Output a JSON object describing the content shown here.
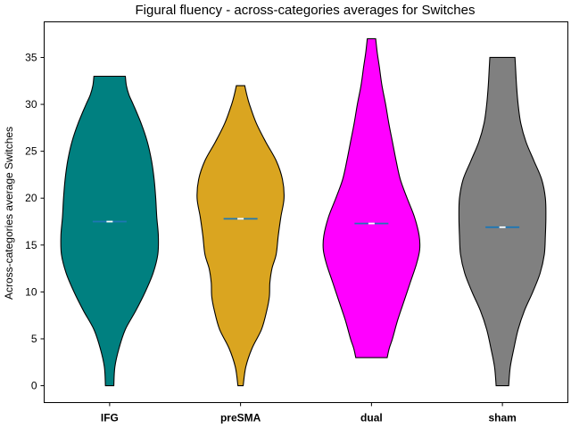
{
  "chart_data": {
    "type": "violin",
    "title": "Figural fluency - across-categories averages for Switches",
    "xlabel": "",
    "ylabel": "Across-categories average Switches",
    "ylim": [
      -1.8,
      38.8
    ],
    "yticks": [
      0,
      5,
      10,
      15,
      20,
      25,
      30,
      35
    ],
    "grid": false,
    "legend": "none",
    "categories": [
      "IFG",
      "preSMA",
      "dual",
      "sham"
    ],
    "colors": [
      "#008080",
      "#DAA520",
      "#FF00FF",
      "#808080"
    ],
    "median_color": "#1f77b4",
    "mean_marker_color": "#ffffff",
    "violins": [
      {
        "name": "IFG",
        "min": 0,
        "max": 33,
        "mean": 17.5,
        "median": 17.5,
        "profile": [
          [
            0,
            0.08
          ],
          [
            2,
            0.1
          ],
          [
            4,
            0.18
          ],
          [
            6,
            0.3
          ],
          [
            8,
            0.5
          ],
          [
            10,
            0.68
          ],
          [
            12,
            0.83
          ],
          [
            14,
            0.92
          ],
          [
            16,
            0.93
          ],
          [
            18,
            0.9
          ],
          [
            20,
            0.88
          ],
          [
            22,
            0.85
          ],
          [
            24,
            0.8
          ],
          [
            26,
            0.72
          ],
          [
            28,
            0.6
          ],
          [
            30,
            0.45
          ],
          [
            31,
            0.37
          ],
          [
            32,
            0.32
          ],
          [
            33,
            0.3
          ]
        ]
      },
      {
        "name": "preSMA",
        "min": 0,
        "max": 32,
        "mean": 17.8,
        "median": 17.8,
        "profile": [
          [
            0,
            0.05
          ],
          [
            2,
            0.1
          ],
          [
            4,
            0.22
          ],
          [
            6,
            0.4
          ],
          [
            8,
            0.5
          ],
          [
            9.5,
            0.55
          ],
          [
            11,
            0.56
          ],
          [
            12.5,
            0.6
          ],
          [
            14,
            0.68
          ],
          [
            16,
            0.72
          ],
          [
            18,
            0.77
          ],
          [
            20,
            0.83
          ],
          [
            22,
            0.8
          ],
          [
            24,
            0.68
          ],
          [
            26,
            0.48
          ],
          [
            28,
            0.3
          ],
          [
            30,
            0.17
          ],
          [
            31,
            0.12
          ],
          [
            32,
            0.08
          ]
        ]
      },
      {
        "name": "dual",
        "min": 3,
        "max": 37,
        "mean": 17.3,
        "median": 17.3,
        "profile": [
          [
            3,
            0.3
          ],
          [
            4,
            0.34
          ],
          [
            5,
            0.4
          ],
          [
            7,
            0.5
          ],
          [
            9,
            0.62
          ],
          [
            11,
            0.74
          ],
          [
            13,
            0.86
          ],
          [
            14.5,
            0.92
          ],
          [
            16,
            0.91
          ],
          [
            18,
            0.82
          ],
          [
            20,
            0.68
          ],
          [
            22,
            0.55
          ],
          [
            24,
            0.47
          ],
          [
            26,
            0.4
          ],
          [
            28,
            0.33
          ],
          [
            30,
            0.27
          ],
          [
            32,
            0.2
          ],
          [
            34,
            0.15
          ],
          [
            35.5,
            0.11
          ],
          [
            37,
            0.08
          ]
        ]
      },
      {
        "name": "sham",
        "min": 0,
        "max": 35,
        "mean": 16.9,
        "median": 16.9,
        "profile": [
          [
            0,
            0.12
          ],
          [
            2,
            0.15
          ],
          [
            4,
            0.22
          ],
          [
            6,
            0.3
          ],
          [
            8,
            0.42
          ],
          [
            10,
            0.58
          ],
          [
            12,
            0.72
          ],
          [
            14,
            0.8
          ],
          [
            16,
            0.82
          ],
          [
            18,
            0.83
          ],
          [
            20,
            0.82
          ],
          [
            22,
            0.75
          ],
          [
            24,
            0.6
          ],
          [
            26,
            0.45
          ],
          [
            28,
            0.35
          ],
          [
            30,
            0.3
          ],
          [
            32,
            0.27
          ],
          [
            34,
            0.25
          ],
          [
            35,
            0.24
          ]
        ]
      }
    ]
  }
}
